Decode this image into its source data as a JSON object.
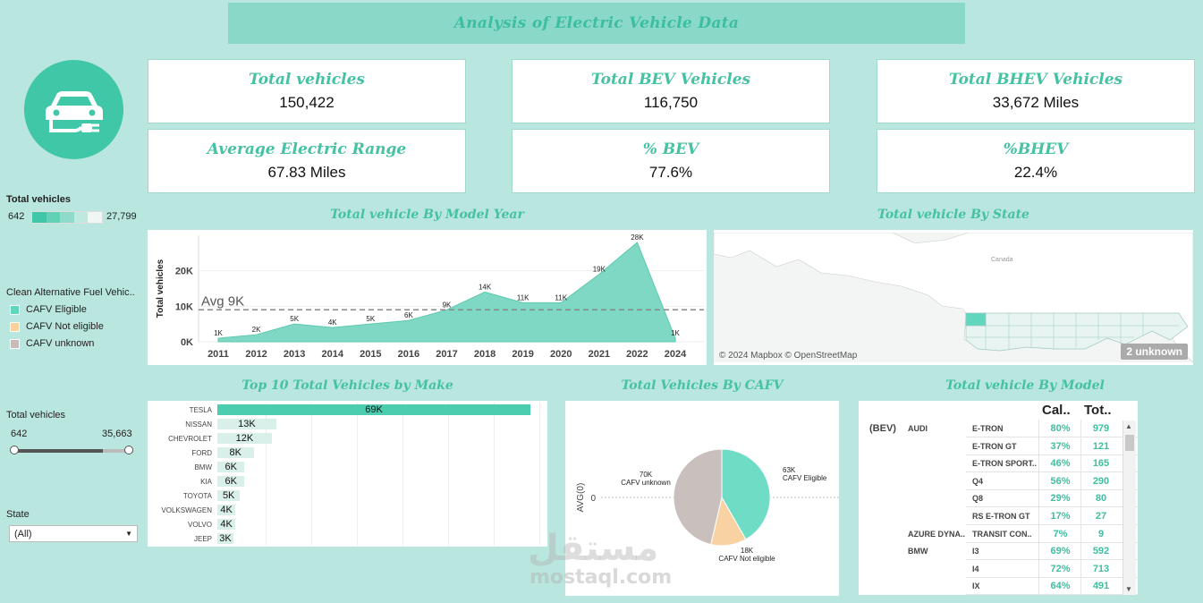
{
  "header": {
    "title": "Analysis of Electric Vehicle Data"
  },
  "logo": {
    "icon": "electric-car-plug-icon"
  },
  "kpis": [
    {
      "label": "Total vehicles",
      "value": "150,422"
    },
    {
      "label": "Total BEV Vehicles",
      "value": "116,750"
    },
    {
      "label": "Total BHEV Vehicles",
      "value": "33,672 Miles"
    },
    {
      "label": "Average Electric Range",
      "value": "67.83 Miles"
    },
    {
      "label": "% BEV",
      "value": "77.6%"
    },
    {
      "label": "%BHEV",
      "value": "22.4%"
    }
  ],
  "sidebar": {
    "color_legend": {
      "title": "Total vehicles",
      "min": "642",
      "max": "27,799"
    },
    "cafv_legend": {
      "title": "Clean Alternative Fuel Vehic..",
      "items": [
        {
          "label": "CAFV Eligible",
          "color": "#5fd6bd"
        },
        {
          "label": "CAFV Not eligible",
          "color": "#f9d19e"
        },
        {
          "label": "CAFV unknown",
          "color": "#c5bcb9"
        }
      ]
    },
    "range_filter": {
      "title": "Total vehicles",
      "min": "642",
      "max": "35,663"
    },
    "state_filter": {
      "title": "State",
      "selected": "(All)"
    }
  },
  "year_chart": {
    "title": "Total vehicle By Model Year",
    "avg_label": "Avg 9K",
    "chart_data": {
      "type": "area",
      "categories": [
        "2011",
        "2012",
        "2013",
        "2014",
        "2015",
        "2016",
        "2017",
        "2018",
        "2019",
        "2020",
        "2021",
        "2022",
        "2024"
      ],
      "values": [
        1,
        2,
        5,
        4,
        5,
        6,
        9,
        14,
        11,
        11,
        19,
        28,
        1
      ],
      "data_labels": [
        "1K",
        "2K",
        "5K",
        "4K",
        "5K",
        "6K",
        "9K",
        "14K",
        "11K",
        "11K",
        "19K",
        "28K",
        "1K"
      ],
      "ylabel": "Total vehicles",
      "yticks": [
        "0K",
        "10K",
        "20K"
      ],
      "ylim": [
        0,
        30
      ],
      "average": 9,
      "color": "#7fd8c3"
    }
  },
  "state_map": {
    "title": "Total vehicle By State",
    "country_label": "Canada",
    "attribution": "© 2024 Mapbox © OpenStreetMap",
    "unknown_badge": "2 unknown"
  },
  "make_chart": {
    "title": "Top 10 Total Vehicles by Make",
    "chart_data": {
      "type": "bar",
      "categories": [
        "TESLA",
        "NISSAN",
        "CHEVROLET",
        "FORD",
        "BMW",
        "KIA",
        "TOYOTA",
        "VOLKSWAGEN",
        "VOLVO",
        "JEEP"
      ],
      "values": [
        69,
        13,
        12,
        8,
        6,
        6,
        5,
        4,
        4,
        3
      ],
      "data_labels": [
        "69K",
        "13K",
        "12K",
        "8K",
        "6K",
        "6K",
        "5K",
        "4K",
        "4K",
        "3K"
      ]
    }
  },
  "cafv_chart": {
    "title": "Total Vehicles By CAFV",
    "ylabel": "AVG(0)",
    "y_tick": "0",
    "chart_data": {
      "type": "pie",
      "slices": [
        {
          "label": "CAFV Eligible",
          "value": 63,
          "data_label": "63K",
          "color": "#6fdcc6"
        },
        {
          "label": "CAFV Not eligible",
          "value": 18,
          "data_label": "18K",
          "color": "#f9d2a3"
        },
        {
          "label": "CAFV unknown",
          "value": 70,
          "data_label": "70K",
          "color": "#c9bfbd"
        }
      ]
    }
  },
  "model_table": {
    "title": "Total vehicle By Model",
    "columns": [
      "Cal..",
      "Tot.."
    ],
    "rows": [
      {
        "type": "(BEV)",
        "make": "AUDI",
        "model": "E-TRON",
        "pct": "80%",
        "total": "979"
      },
      {
        "type": "",
        "make": "",
        "model": "E-TRON GT",
        "pct": "37%",
        "total": "121"
      },
      {
        "type": "",
        "make": "",
        "model": "E-TRON SPORT..",
        "pct": "46%",
        "total": "165"
      },
      {
        "type": "",
        "make": "",
        "model": "Q4",
        "pct": "56%",
        "total": "290"
      },
      {
        "type": "",
        "make": "",
        "model": "Q8",
        "pct": "29%",
        "total": "80"
      },
      {
        "type": "",
        "make": "",
        "model": "RS E-TRON GT",
        "pct": "17%",
        "total": "27"
      },
      {
        "type": "",
        "make": "AZURE DYNA..",
        "model": "TRANSIT CON..",
        "pct": "7%",
        "total": "9"
      },
      {
        "type": "",
        "make": "BMW",
        "model": "I3",
        "pct": "69%",
        "total": "592"
      },
      {
        "type": "",
        "make": "",
        "model": "I4",
        "pct": "72%",
        "total": "713"
      },
      {
        "type": "",
        "make": "",
        "model": "IX",
        "pct": "64%",
        "total": "491"
      }
    ]
  },
  "watermark": {
    "arabic": "مستقل",
    "latin": "mostaql.com"
  }
}
